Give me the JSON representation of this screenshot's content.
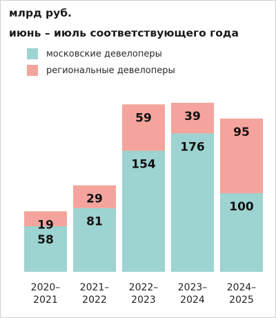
{
  "header": {
    "title_line1": "млрд руб.",
    "title_line2": "июнь – июль соответствующего года"
  },
  "chart_data": {
    "type": "bar",
    "stacked": true,
    "categories": [
      "2020–2021",
      "2021–2022",
      "2022–2023",
      "2023–2024",
      "2024–2025"
    ],
    "category_lines": [
      [
        "2020–",
        "2021"
      ],
      [
        "2021–",
        "2022"
      ],
      [
        "2022–",
        "2023"
      ],
      [
        "2023–",
        "2024"
      ],
      [
        "2024–",
        "2025"
      ]
    ],
    "series": [
      {
        "name": "московские девелоперы",
        "color": "#9dd3d0",
        "values": [
          58,
          81,
          154,
          176,
          100
        ]
      },
      {
        "name": "региональные девелоперы",
        "color": "#f4a49c",
        "values": [
          19,
          29,
          59,
          39,
          95
        ]
      }
    ],
    "ylim": [
      0,
      215
    ],
    "grid": false,
    "legend": "top-left"
  }
}
